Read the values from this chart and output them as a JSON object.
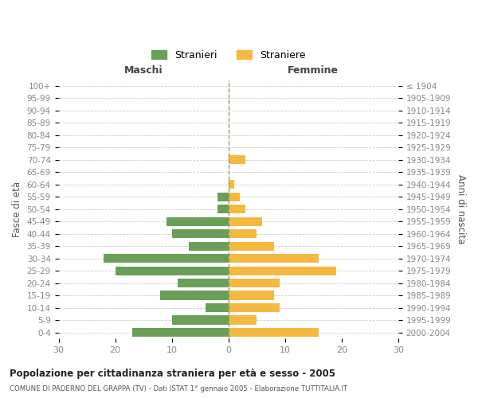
{
  "age_groups": [
    "100+",
    "95-99",
    "90-94",
    "85-89",
    "80-84",
    "75-79",
    "70-74",
    "65-69",
    "60-64",
    "55-59",
    "50-54",
    "45-49",
    "40-44",
    "35-39",
    "30-34",
    "25-29",
    "20-24",
    "15-19",
    "10-14",
    "5-9",
    "0-4"
  ],
  "birth_years": [
    "≤ 1904",
    "1905-1909",
    "1910-1914",
    "1915-1919",
    "1920-1924",
    "1925-1929",
    "1930-1934",
    "1935-1939",
    "1940-1944",
    "1945-1949",
    "1950-1954",
    "1955-1959",
    "1960-1964",
    "1965-1969",
    "1970-1974",
    "1975-1979",
    "1980-1984",
    "1985-1989",
    "1990-1994",
    "1995-1999",
    "2000-2004"
  ],
  "males": [
    0,
    0,
    0,
    0,
    0,
    0,
    0,
    0,
    0,
    2,
    2,
    11,
    10,
    7,
    22,
    20,
    9,
    12,
    4,
    10,
    17
  ],
  "females": [
    0,
    0,
    0,
    0,
    0,
    0,
    3,
    0,
    1,
    2,
    3,
    6,
    5,
    8,
    16,
    19,
    9,
    8,
    9,
    5,
    16
  ],
  "male_color": "#6a9f58",
  "female_color": "#f5b942",
  "title": "Popolazione per cittadinanza straniera per età e sesso - 2005",
  "subtitle": "COMUNE DI PADERNO DEL GRAPPA (TV) - Dati ISTAT 1° gennaio 2005 - Elaborazione TUTTITALIA.IT",
  "ylabel_left": "Fasce di età",
  "ylabel_right": "Anni di nascita",
  "xlabel_left": "Maschi",
  "xlabel_right": "Femmine",
  "xlim": 30,
  "background_color": "#ffffff",
  "grid_color": "#cccccc",
  "legend_label_male": "Stranieri",
  "legend_label_female": "Straniere",
  "tick_color": "#888888",
  "axis_label_color": "#555555"
}
